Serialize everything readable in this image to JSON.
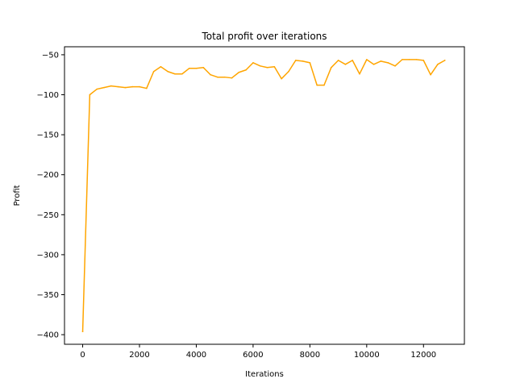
{
  "chart_data": {
    "type": "line",
    "title": "Total profit over iterations",
    "xlabel": "Iterations",
    "ylabel": "Profit",
    "xlim": [
      -640,
      13440
    ],
    "ylim": [
      -412,
      -40
    ],
    "xticks": [
      0,
      2000,
      4000,
      6000,
      8000,
      10000,
      12000
    ],
    "xtick_labels": [
      "0",
      "2000",
      "4000",
      "6000",
      "8000",
      "10000",
      "12000"
    ],
    "yticks": [
      -400,
      -350,
      -300,
      -250,
      -200,
      -150,
      -100,
      -50
    ],
    "ytick_labels": [
      "−400",
      "−350",
      "−300",
      "−250",
      "−200",
      "−150",
      "−100",
      "−50"
    ],
    "grid": false,
    "legend": "none",
    "series": [
      {
        "color": "#FFA500",
        "x": [
          0,
          250,
          500,
          750,
          1000,
          1250,
          1500,
          1750,
          2000,
          2250,
          2500,
          2750,
          3000,
          3250,
          3500,
          3750,
          4000,
          4250,
          4500,
          4750,
          5000,
          5250,
          5500,
          5750,
          6000,
          6250,
          6500,
          6750,
          7000,
          7250,
          7500,
          7750,
          8000,
          8250,
          8500,
          8750,
          9000,
          9250,
          9500,
          9750,
          10000,
          10250,
          10500,
          10750,
          11000,
          11250,
          11500,
          11750,
          12000,
          12250,
          12500,
          12750
        ],
        "y": [
          -396,
          -100,
          -93,
          -91,
          -89,
          -90,
          -91,
          -90,
          -90,
          -92,
          -71,
          -65,
          -71,
          -74,
          -74,
          -67,
          -67,
          -66,
          -75,
          -78,
          -78,
          -79,
          -72,
          -69,
          -60,
          -64,
          -66,
          -65,
          -80,
          -71,
          -57,
          -58,
          -60,
          -88,
          -88,
          -66,
          -57,
          -62,
          -57,
          -74,
          -56,
          -62,
          -58,
          -60,
          -64,
          -56,
          -56,
          -56,
          -57,
          -75,
          -62,
          -57
        ]
      }
    ]
  }
}
